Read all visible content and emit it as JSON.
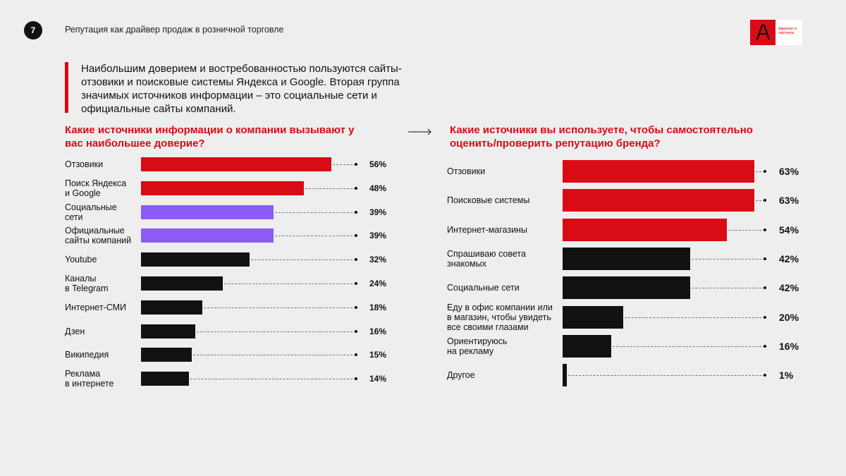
{
  "page_number": "7",
  "header": {
    "title": "Репутация как драйвер продаж в розничной торговле"
  },
  "logo": {
    "text": "Адвизорс и партнеры",
    "icon": "brand-logo-icon"
  },
  "lead_text": "Наибольшим доверием и востребованностью пользуются сайты-отзовики и поисковые системы Яндекса и Google. Вторая группа значимых источников информации – это социальные сети и официальные сайты компаний.",
  "colors": {
    "red": "#d90b14",
    "purple": "#8b5cf6",
    "black": "#111111",
    "background": "#eeeeee"
  },
  "chart_data": [
    {
      "type": "bar",
      "orientation": "horizontal",
      "title": "Какие источники информации о компании вызывают у вас наибольшее доверие?",
      "unit": "%",
      "categories": [
        "Отзовики",
        "Поиск Яндекса\nи Google",
        "Социальные\nсети",
        "Официальные\nсайты компаний",
        "Youtube",
        "Каналы\nв Telegram",
        "Интернет-СМИ",
        "Дзен",
        "Википедия",
        "Реклама\nв интернете"
      ],
      "values": [
        56,
        48,
        39,
        39,
        32,
        24,
        18,
        16,
        15,
        14
      ],
      "value_labels": [
        "56%",
        "48%",
        "39%",
        "39%",
        "32%",
        "24%",
        "18%",
        "16%",
        "15%",
        "14%"
      ],
      "bar_colors": [
        "#d90b14",
        "#d90b14",
        "#8b5cf6",
        "#8b5cf6",
        "#111111",
        "#111111",
        "#111111",
        "#111111",
        "#111111",
        "#111111"
      ],
      "xlim": [
        0,
        56
      ]
    },
    {
      "type": "bar",
      "orientation": "horizontal",
      "title": "Какие источники вы используете, чтобы самостоятельно оценить/проверить репутацию бренда?",
      "unit": "%",
      "categories": [
        "Отзовики",
        "Поисковые системы",
        "Интернет-магазины",
        "Спрашиваю совета\nзнакомых",
        "Социальные сети",
        "Еду в офис компании или\nв магазин, чтобы увидеть\nвсе своими глазами",
        "Ориентируюсь\nна рекламу",
        "Другое"
      ],
      "values": [
        63,
        63,
        54,
        42,
        42,
        20,
        16,
        1
      ],
      "value_labels": [
        "63%",
        "63%",
        "54%",
        "42%",
        "42%",
        "20%",
        "16%",
        "1%"
      ],
      "bar_colors": [
        "#d90b14",
        "#d90b14",
        "#d90b14",
        "#111111",
        "#111111",
        "#111111",
        "#111111",
        "#111111"
      ],
      "xlim": [
        0,
        63
      ]
    }
  ]
}
